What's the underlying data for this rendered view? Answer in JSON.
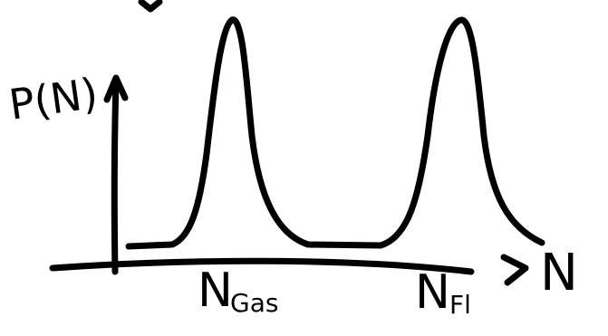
{
  "colors": {
    "ink": "#000000",
    "background": "#ffffff"
  },
  "labels": {
    "y_axis": "P(N)",
    "x_axis": "N",
    "peak_gas_main": "N",
    "peak_gas_sub": "Gas",
    "peak_fl_main": "N",
    "peak_fl_sub": "Fl"
  }
}
